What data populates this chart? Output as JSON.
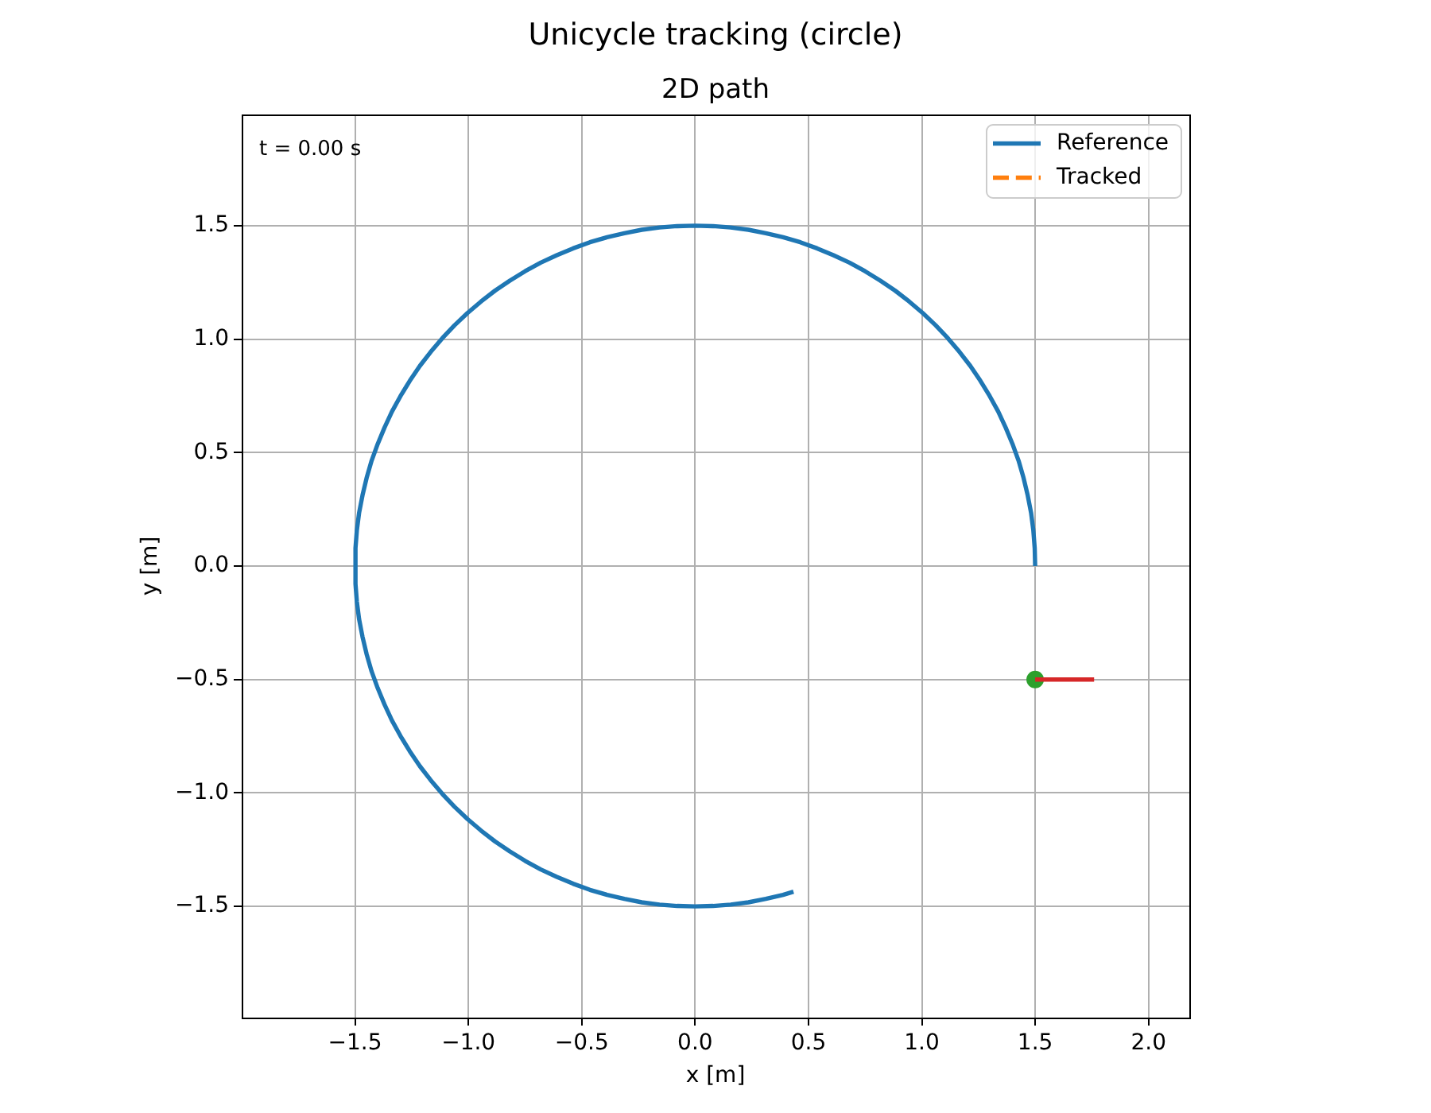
{
  "chart_data": {
    "type": "line",
    "title": "Unicycle tracking (circle)",
    "subtitle": "2D path",
    "xlabel": "x [m]",
    "ylabel": "y [m]",
    "annotations": [
      "t = 0.00 s"
    ],
    "xlim": [
      -2.0,
      2.18
    ],
    "ylim": [
      -1.99,
      1.99
    ],
    "xticks": [
      {
        "value": -1.5,
        "label": "−1.5"
      },
      {
        "value": -1.0,
        "label": "−1.0"
      },
      {
        "value": -0.5,
        "label": "−0.5"
      },
      {
        "value": 0,
        "label": "0.0"
      },
      {
        "value": 0.5,
        "label": "0.5"
      },
      {
        "value": 1.0,
        "label": "1.0"
      },
      {
        "value": 1.5,
        "label": "1.5"
      },
      {
        "value": 2.0,
        "label": "2.0"
      }
    ],
    "yticks": [
      {
        "value": -1.5,
        "label": "−1.5"
      },
      {
        "value": -1.0,
        "label": "−1.0"
      },
      {
        "value": -0.5,
        "label": "−0.5"
      },
      {
        "value": 0,
        "label": "0.0"
      },
      {
        "value": 0.5,
        "label": "0.5"
      },
      {
        "value": 1.0,
        "label": "1.0"
      },
      {
        "value": 1.5,
        "label": "1.5"
      }
    ],
    "grid": true,
    "legend": "top right",
    "series": [
      {
        "name": "Reference",
        "color": "#1f77b4",
        "line_style": "solid",
        "x": [
          1.5,
          1.498,
          1.492,
          1.482,
          1.467,
          1.449,
          1.427,
          1.4,
          1.37,
          1.337,
          1.299,
          1.258,
          1.214,
          1.166,
          1.115,
          1.061,
          1.004,
          0.944,
          0.882,
          0.817,
          0.75,
          0.681,
          0.61,
          0.538,
          0.464,
          0.388,
          0.312,
          0.235,
          0.157,
          0.079,
          0,
          -0.079,
          -0.157,
          -0.235,
          -0.312,
          -0.388,
          -0.464,
          -0.538,
          -0.61,
          -0.681,
          -0.75,
          -0.817,
          -0.882,
          -0.944,
          -1.004,
          -1.061,
          -1.115,
          -1.166,
          -1.214,
          -1.258,
          -1.299,
          -1.337,
          -1.37,
          -1.4,
          -1.427,
          -1.449,
          -1.467,
          -1.482,
          -1.492,
          -1.498,
          -1.498,
          -1.492,
          -1.482,
          -1.467,
          -1.449,
          -1.427,
          -1.4,
          -1.37,
          -1.337,
          -1.299,
          -1.258,
          -1.214,
          -1.166,
          -1.115,
          -1.061,
          -1.004,
          -0.944,
          -0.882,
          -0.817,
          -0.75,
          -0.681,
          -0.61,
          -0.538,
          -0.464,
          -0.388,
          -0.312,
          -0.235,
          -0.157,
          -0.079,
          0,
          0.079,
          0.157,
          0.235,
          0.312,
          0.388,
          0.434
        ],
        "values": [
          0,
          0.079,
          0.157,
          0.235,
          0.312,
          0.388,
          0.464,
          0.538,
          0.61,
          0.681,
          0.75,
          0.817,
          0.882,
          0.944,
          1.004,
          1.061,
          1.115,
          1.166,
          1.214,
          1.258,
          1.299,
          1.337,
          1.37,
          1.4,
          1.427,
          1.449,
          1.467,
          1.482,
          1.492,
          1.498,
          1.5,
          1.498,
          1.492,
          1.482,
          1.467,
          1.449,
          1.427,
          1.4,
          1.37,
          1.337,
          1.299,
          1.258,
          1.214,
          1.166,
          1.115,
          1.061,
          1.004,
          0.944,
          0.882,
          0.817,
          0.75,
          0.681,
          0.61,
          0.538,
          0.464,
          0.388,
          0.312,
          0.235,
          0.157,
          0.079,
          -0.079,
          -0.157,
          -0.235,
          -0.312,
          -0.388,
          -0.464,
          -0.538,
          -0.61,
          -0.681,
          -0.75,
          -0.817,
          -0.882,
          -0.944,
          -1.004,
          -1.061,
          -1.115,
          -1.166,
          -1.214,
          -1.258,
          -1.299,
          -1.337,
          -1.37,
          -1.4,
          -1.427,
          -1.449,
          -1.467,
          -1.482,
          -1.492,
          -1.498,
          -1.5,
          -1.498,
          -1.492,
          -1.482,
          -1.467,
          -1.449,
          -1.435
        ]
      },
      {
        "name": "Tracked",
        "color": "#ff7f0e",
        "line_style": "dashed"
      },
      {
        "type": "scatter",
        "color": "#2ca02c",
        "marker": "circle",
        "x": [
          1.5
        ],
        "values": [
          -0.5
        ]
      },
      {
        "color": "#d62728",
        "line_style": "solid",
        "x": [
          1.5,
          1.76
        ],
        "values": [
          -0.5,
          -0.5
        ]
      }
    ]
  }
}
